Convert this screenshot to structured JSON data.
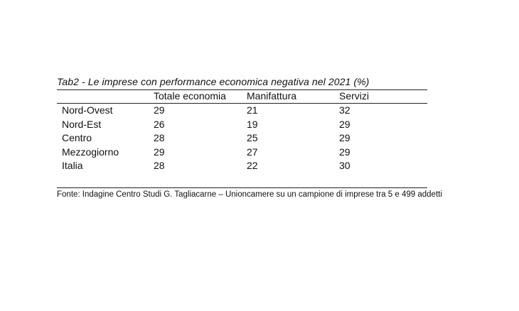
{
  "table": {
    "caption": "Tab2 - Le imprese con performance economica negativa nel 2021 (%)",
    "columns": [
      "",
      "Totale economia",
      "Manifattura",
      "Servizi"
    ],
    "rows": [
      {
        "label": "Nord-Ovest",
        "values": [
          "29",
          "21",
          "32"
        ]
      },
      {
        "label": "Nord-Est",
        "values": [
          "26",
          "19",
          "29"
        ]
      },
      {
        "label": "Centro",
        "values": [
          "28",
          "25",
          "29"
        ]
      },
      {
        "label": "Mezzogiorno",
        "values": [
          "29",
          "27",
          "29"
        ]
      },
      {
        "label": "Italia",
        "values": [
          "28",
          "22",
          "30"
        ]
      }
    ],
    "source": "Fonte: Indagine Centro Studi G. Tagliacarne – Unioncamere su un campione di imprese tra 5 e 499 addetti"
  }
}
